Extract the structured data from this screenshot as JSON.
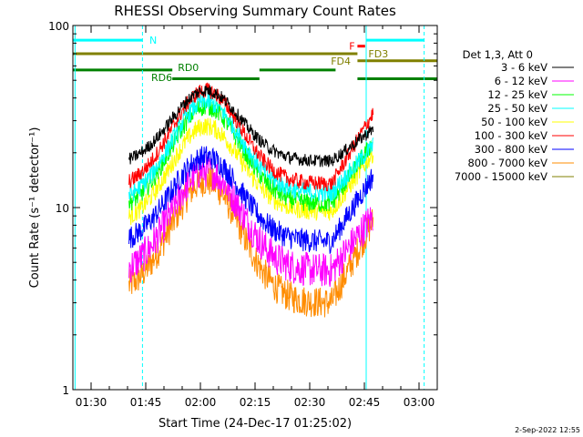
{
  "chart_data": {
    "type": "line",
    "title": "RHESSI Observing Summary Count Rates",
    "xlabel": "Start Time (24-Dec-17 01:25:02)",
    "ylabel": "Count Rate (s⁻¹ detector⁻¹)",
    "yscale": "log",
    "ylim": [
      1,
      100
    ],
    "xlim_minutes": [
      85,
      185
    ],
    "x_ticks": [
      {
        "label": "01:30",
        "minutes": 90
      },
      {
        "label": "01:45",
        "minutes": 105
      },
      {
        "label": "02:00",
        "minutes": 120
      },
      {
        "label": "02:15",
        "minutes": 135
      },
      {
        "label": "02:30",
        "minutes": 150
      },
      {
        "label": "02:45",
        "minutes": 165
      },
      {
        "label": "03:00",
        "minutes": 180
      }
    ],
    "y_ticks": [
      {
        "label": "1",
        "value": 1
      },
      {
        "label": "10",
        "value": 10
      },
      {
        "label": "100",
        "value": 100
      }
    ],
    "legend_header": "Det 1,3, Att 0",
    "data_start_minutes": 100.4,
    "data_end_minutes": 167.4,
    "series": [
      {
        "name": "3 - 6 keV",
        "color": "#000000",
        "front": 17.0,
        "peak": 44.0,
        "back": 18.0,
        "end": 27.0,
        "noise": 0.08
      },
      {
        "name": "6 - 12 keV",
        "color": "#ff00ff",
        "front": 4.2,
        "peak": 16.0,
        "back": 4.5,
        "end": 9.0,
        "noise": 0.22
      },
      {
        "name": "12 - 25 keV",
        "color": "#00ff00",
        "front": 9.5,
        "peak": 36.0,
        "back": 10.5,
        "end": 23.0,
        "noise": 0.12
      },
      {
        "name": "25 - 50 keV",
        "color": "#00ffff",
        "front": 10.5,
        "peak": 38.0,
        "back": 12.0,
        "end": 22.0,
        "noise": 0.12
      },
      {
        "name": "50 - 100 keV",
        "color": "#ffff00",
        "front": 8.0,
        "peak": 28.0,
        "back": 9.5,
        "end": 20.0,
        "noise": 0.12
      },
      {
        "name": "100 - 300 keV",
        "color": "#ff0000",
        "front": 12.5,
        "peak": 44.0,
        "back": 13.5,
        "end": 33.0,
        "noise": 0.1
      },
      {
        "name": "300 - 800 keV",
        "color": "#0000ff",
        "front": 6.2,
        "peak": 19.0,
        "back": 6.5,
        "end": 15.0,
        "noise": 0.15
      },
      {
        "name": "800 - 7000 keV",
        "color": "#ff8c00",
        "front": 3.3,
        "peak": 14.0,
        "back": 3.0,
        "end": 8.5,
        "noise": 0.2
      },
      {
        "name": "7000 - 15000 keV",
        "color": "#808000",
        "front": null,
        "peak": null,
        "back": null,
        "end": null,
        "noise": 0
      }
    ],
    "vertical_lines": [
      {
        "minutes": 85.6,
        "color": "#00ffff",
        "style": "solid"
      },
      {
        "minutes": 104.1,
        "color": "#00ffff",
        "style": "dashed"
      },
      {
        "minutes": 165.5,
        "color": "#00ffff",
        "style": "solid"
      },
      {
        "minutes": 181.4,
        "color": "#00ffff",
        "style": "dashed"
      }
    ],
    "flag_bars": [
      {
        "label": "N",
        "color": "#00ffff",
        "x0": 85.0,
        "x1": 104.1,
        "y_value": 83,
        "label_minutes": 106.0,
        "label_y_value": 83
      },
      {
        "label": "",
        "color": "#00ffff",
        "x0": 165.5,
        "x1": 181.4,
        "y_value": 83,
        "label_minutes": null,
        "label_y_value": null
      },
      {
        "label": "F",
        "color": "#ff0000",
        "x0": 163.1,
        "x1": 165.2,
        "y_value": 77,
        "label_minutes": 160.8,
        "label_y_value": 77
      },
      {
        "label": "FD3",
        "color": "#808000",
        "x0": 85.0,
        "x1": 163.1,
        "y_value": 70,
        "label_minutes": 166.1,
        "label_y_value": 70
      },
      {
        "label": "FD4",
        "color": "#808000",
        "x0": 163.1,
        "x1": 185.0,
        "y_value": 64,
        "label_minutes": 155.8,
        "label_y_value": 64
      },
      {
        "label": "RD0",
        "color": "#008000",
        "x0": 85.0,
        "x1": 112.3,
        "y_value": 57,
        "label_minutes": 113.8,
        "label_y_value": 59
      },
      {
        "label": "",
        "color": "#008000",
        "x0": 136.2,
        "x1": 157.1,
        "y_value": 57,
        "label_minutes": null,
        "label_y_value": null
      },
      {
        "label": "RD6",
        "color": "#008000",
        "x0": 112.3,
        "x1": 136.2,
        "y_value": 51,
        "label_minutes": 106.5,
        "label_y_value": 52
      },
      {
        "label": "",
        "color": "#008000",
        "x0": 163.1,
        "x1": 185.0,
        "y_value": 51,
        "label_minutes": null,
        "label_y_value": null
      }
    ],
    "footer_date": "2-Sep-2022 12:55"
  }
}
